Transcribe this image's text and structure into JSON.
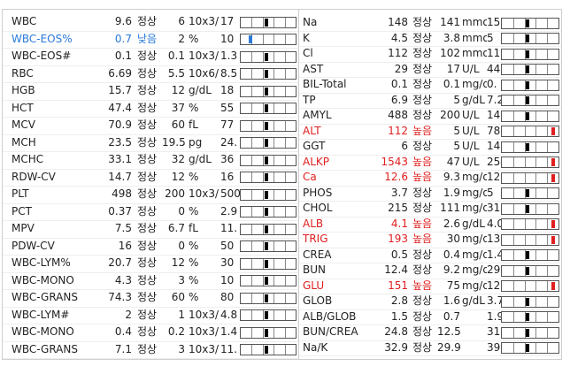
{
  "left_table": {
    "rows": [
      [
        "WBC",
        "9.6",
        "정상",
        "6",
        "10x3/",
        "17"
      ],
      [
        "WBC-EOS%",
        "0.7",
        "낮음",
        "2",
        "%",
        "10"
      ],
      [
        "WBC-EOS#",
        "0.1",
        "정상",
        "0.1",
        "10x3/",
        "1.3"
      ],
      [
        "RBC",
        "6.69",
        "정상",
        "5.5",
        "10x6/",
        "8.5"
      ],
      [
        "HGB",
        "15.7",
        "정상",
        "12",
        "g/dL",
        "18"
      ],
      [
        "HCT",
        "47.4",
        "정상",
        "37",
        "%",
        "55"
      ],
      [
        "MCV",
        "70.9",
        "정상",
        "60",
        "fL",
        "77"
      ],
      [
        "MCH",
        "23.5",
        "정상",
        "19.5",
        "pg",
        "24."
      ],
      [
        "MCHC",
        "33.1",
        "정상",
        "32",
        "g/dL",
        "36"
      ],
      [
        "RDW-CV",
        "14.7",
        "정상",
        "12",
        "%",
        "16"
      ],
      [
        "PLT",
        "498",
        "정상",
        "200",
        "10x3/",
        "500"
      ],
      [
        "PCT",
        "0.37",
        "정상",
        "0",
        "%",
        "2.9"
      ],
      [
        "MPV",
        "7.5",
        "정상",
        "6.7",
        "fL",
        "11."
      ],
      [
        "PDW-CV",
        "16",
        "정상",
        "0",
        "%",
        "50"
      ],
      [
        "WBC-LYM%",
        "20.7",
        "정상",
        "12",
        "%",
        "30"
      ],
      [
        "WBC-MONO",
        "4.3",
        "정상",
        "3",
        "%",
        "10"
      ],
      [
        "WBC-GRANS",
        "74.3",
        "정상",
        "60",
        "%",
        "80"
      ],
      [
        "WBC-LYM#",
        "2",
        "정상",
        "1",
        "10x3/",
        "4.8"
      ],
      [
        "WBC-MONO",
        "0.4",
        "정상",
        "0.2",
        "10x3/",
        "1.4"
      ],
      [
        "WBC-GRANS",
        "7.1",
        "정상",
        "3",
        "10x3/",
        "11."
      ]
    ]
  },
  "right_table": {
    "rows": [
      [
        "Na",
        "148",
        "정상",
        "141",
        "mmol",
        "152"
      ],
      [
        "K",
        "4.5",
        "정상",
        "3.8",
        "mmol",
        "5"
      ],
      [
        "Cl",
        "112",
        "정상",
        "102",
        "mmol",
        "117"
      ],
      [
        "AST",
        "29",
        "정상",
        "17",
        "U/L",
        "44"
      ],
      [
        "BIL-Total",
        "0.1",
        "정상",
        "0.1",
        "mg/d",
        "0."
      ],
      [
        "TP",
        "6.9",
        "정상",
        "5",
        "g/dL",
        "7.2"
      ],
      [
        "AMYL",
        "488",
        "정상",
        "200",
        "U/L",
        "140"
      ],
      [
        "ALT",
        "112",
        "높음",
        "5",
        "U/L",
        "78"
      ],
      [
        "GGT",
        "6",
        "정상",
        "5",
        "U/L",
        "14"
      ],
      [
        "ALKP",
        "1543",
        "높음",
        "47",
        "U/L",
        "254"
      ],
      [
        "Ca",
        "12.6",
        "높음",
        "9.3",
        "mg/d",
        "12."
      ],
      [
        "PHOS",
        "3.7",
        "정상",
        "1.9",
        "mg/d",
        "5"
      ],
      [
        "CHOL",
        "215",
        "정상",
        "111",
        "mg/d",
        "312"
      ],
      [
        "ALB",
        "4.1",
        "높음",
        "2.6",
        "g/dL",
        "4.0"
      ],
      [
        "TRIG",
        "193",
        "높음",
        "30",
        "mg/d",
        "133"
      ],
      [
        "CREA",
        "0.5",
        "정상",
        "0.4",
        "mg/d",
        "1.4"
      ],
      [
        "BUN",
        "12.4",
        "정상",
        "9.2",
        "mg/d",
        "29."
      ],
      [
        "GLU",
        "151",
        "높음",
        "75",
        "mg/d",
        "128"
      ],
      [
        "GLOB",
        "2.8",
        "정상",
        "1.6",
        "g/dL",
        "3.7"
      ],
      [
        "ALB/GLOB",
        "1.5",
        "정상",
        "0.7",
        null,
        "1.9"
      ],
      [
        "BUN/CREA",
        "24.8",
        "정상",
        "12.5",
        null,
        "31."
      ],
      [
        "Na/K",
        "32.9",
        "정상",
        "29.9",
        null,
        "39."
      ]
    ]
  }
}
